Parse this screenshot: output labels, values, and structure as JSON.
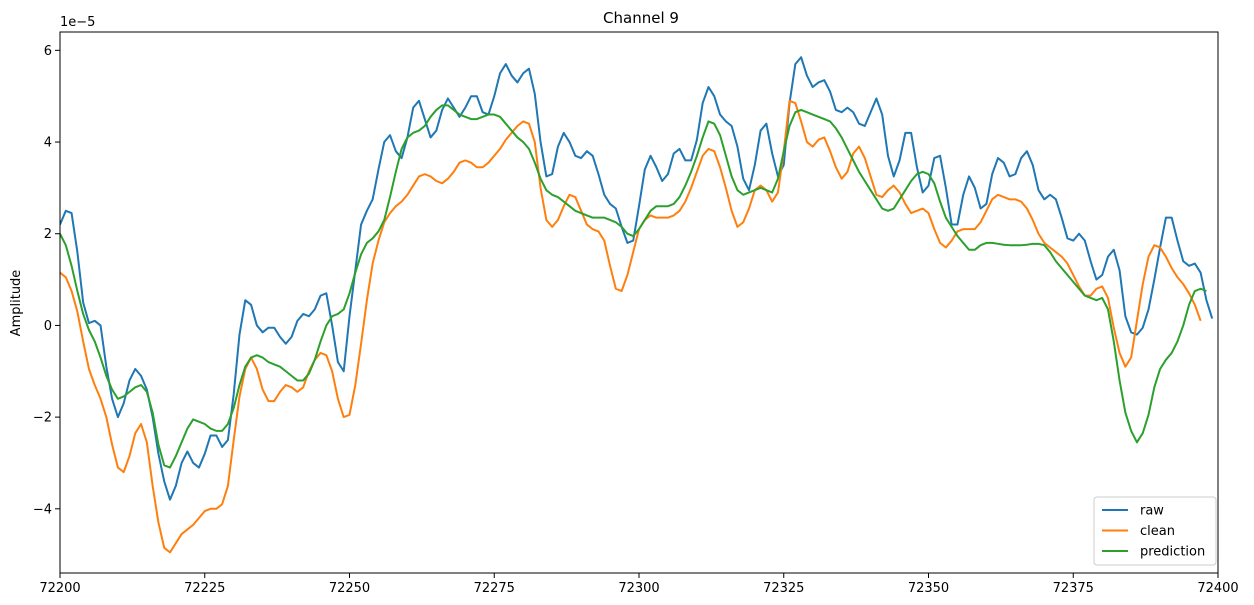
{
  "chart_data": {
    "type": "line",
    "title": "Channel 9",
    "xlabel": "",
    "ylabel": "Amplitude",
    "y_offset_text": "1e−5",
    "xlim": [
      72200,
      72400
    ],
    "ylim": [
      -5.4,
      6.4
    ],
    "x_ticks": [
      72200,
      72225,
      72250,
      72275,
      72300,
      72325,
      72350,
      72375,
      72400
    ],
    "y_ticks": [
      -4,
      -2,
      0,
      2,
      4,
      6
    ],
    "y_tick_labels": [
      "−4",
      "−2",
      "0",
      "2",
      "4",
      "6"
    ],
    "grid": false,
    "legend_position": "lower right",
    "x_start": 72200,
    "x_step": 1,
    "series": [
      {
        "name": "raw",
        "color": "#1f77b4",
        "values": [
          2.2,
          2.5,
          2.45,
          1.6,
          0.5,
          0.05,
          0.1,
          0.0,
          -0.9,
          -1.6,
          -2.0,
          -1.7,
          -1.2,
          -0.95,
          -1.1,
          -1.4,
          -2.0,
          -2.8,
          -3.4,
          -3.8,
          -3.5,
          -3.0,
          -2.75,
          -3.0,
          -3.1,
          -2.8,
          -2.4,
          -2.4,
          -2.65,
          -2.5,
          -1.5,
          -0.2,
          0.55,
          0.45,
          0.0,
          -0.15,
          -0.05,
          -0.05,
          -0.25,
          -0.4,
          -0.25,
          0.1,
          0.25,
          0.2,
          0.35,
          0.65,
          0.7,
          0.0,
          -0.8,
          -1.0,
          0.2,
          1.2,
          2.2,
          2.5,
          2.75,
          3.4,
          4.0,
          4.15,
          3.8,
          3.65,
          4.1,
          4.75,
          4.9,
          4.5,
          4.1,
          4.25,
          4.7,
          4.95,
          4.75,
          4.55,
          4.75,
          5.0,
          5.0,
          4.65,
          4.6,
          5.0,
          5.5,
          5.7,
          5.45,
          5.3,
          5.5,
          5.6,
          5.05,
          4.0,
          3.25,
          3.3,
          3.9,
          4.2,
          4.0,
          3.7,
          3.65,
          3.8,
          3.7,
          3.3,
          2.85,
          2.65,
          2.55,
          2.15,
          1.8,
          1.85,
          2.6,
          3.4,
          3.7,
          3.45,
          3.15,
          3.3,
          3.75,
          3.85,
          3.6,
          3.6,
          4.05,
          4.85,
          5.2,
          5.0,
          4.6,
          4.45,
          4.35,
          3.9,
          3.2,
          2.95,
          3.5,
          4.25,
          4.4,
          3.75,
          3.25,
          3.5,
          4.85,
          5.7,
          5.85,
          5.45,
          5.2,
          5.3,
          5.35,
          5.1,
          4.7,
          4.65,
          4.75,
          4.65,
          4.4,
          4.35,
          4.65,
          4.95,
          4.6,
          3.7,
          3.25,
          3.6,
          4.2,
          4.2,
          3.45,
          2.9,
          3.05,
          3.65,
          3.7,
          3.0,
          2.2,
          2.2,
          2.85,
          3.25,
          3.0,
          2.55,
          2.65,
          3.3,
          3.65,
          3.55,
          3.25,
          3.3,
          3.65,
          3.8,
          3.5,
          2.95,
          2.75,
          2.85,
          2.75,
          2.35,
          1.9,
          1.85,
          2.0,
          1.85,
          1.4,
          1.0,
          1.1,
          1.5,
          1.65,
          1.2,
          0.2,
          -0.15,
          -0.2,
          -0.05,
          0.35,
          1.0,
          1.7,
          2.35,
          2.35,
          1.85,
          1.4,
          1.3,
          1.35,
          1.15,
          0.55,
          0.15
        ]
      },
      {
        "name": "clean",
        "color": "#ff7f0e",
        "values": [
          1.15,
          1.05,
          0.75,
          0.3,
          -0.35,
          -0.95,
          -1.3,
          -1.6,
          -2.0,
          -2.6,
          -3.1,
          -3.2,
          -2.85,
          -2.35,
          -2.15,
          -2.55,
          -3.5,
          -4.3,
          -4.85,
          -4.95,
          -4.75,
          -4.55,
          -4.45,
          -4.35,
          -4.2,
          -4.05,
          -4.0,
          -4.0,
          -3.9,
          -3.5,
          -2.5,
          -1.55,
          -0.95,
          -0.7,
          -0.95,
          -1.4,
          -1.65,
          -1.65,
          -1.45,
          -1.3,
          -1.35,
          -1.45,
          -1.35,
          -1.0,
          -0.75,
          -0.6,
          -0.65,
          -1.0,
          -1.6,
          -2.0,
          -1.95,
          -1.3,
          -0.4,
          0.55,
          1.35,
          1.85,
          2.25,
          2.45,
          2.6,
          2.7,
          2.85,
          3.05,
          3.25,
          3.3,
          3.25,
          3.15,
          3.1,
          3.2,
          3.35,
          3.55,
          3.6,
          3.55,
          3.45,
          3.45,
          3.55,
          3.7,
          3.85,
          4.05,
          4.2,
          4.35,
          4.45,
          4.4,
          4.0,
          3.0,
          2.3,
          2.15,
          2.3,
          2.6,
          2.85,
          2.8,
          2.5,
          2.2,
          2.1,
          2.05,
          1.85,
          1.3,
          0.8,
          0.75,
          1.1,
          1.6,
          2.1,
          2.3,
          2.4,
          2.35,
          2.35,
          2.35,
          2.4,
          2.5,
          2.7,
          3.0,
          3.35,
          3.7,
          3.85,
          3.8,
          3.45,
          3.0,
          2.5,
          2.15,
          2.25,
          2.55,
          2.95,
          3.05,
          2.95,
          2.7,
          2.9,
          3.8,
          4.9,
          4.85,
          4.45,
          4.0,
          3.9,
          4.05,
          4.1,
          3.8,
          3.45,
          3.2,
          3.35,
          3.75,
          3.9,
          3.65,
          3.25,
          2.85,
          2.8,
          2.95,
          3.05,
          2.9,
          2.65,
          2.45,
          2.5,
          2.55,
          2.45,
          2.1,
          1.8,
          1.7,
          1.85,
          2.05,
          2.1,
          2.1,
          2.1,
          2.25,
          2.5,
          2.75,
          2.85,
          2.8,
          2.75,
          2.75,
          2.7,
          2.55,
          2.3,
          2.0,
          1.8,
          1.7,
          1.6,
          1.5,
          1.35,
          1.1,
          0.85,
          0.65,
          0.65,
          0.8,
          0.85,
          0.6,
          -0.05,
          -0.6,
          -0.9,
          -0.7,
          0.1,
          0.9,
          1.5,
          1.75,
          1.7,
          1.5,
          1.25,
          1.05,
          0.9,
          0.7,
          0.45,
          0.1
        ]
      },
      {
        "name": "prediction",
        "color": "#2ca02c",
        "values": [
          2.0,
          1.75,
          1.3,
          0.75,
          0.25,
          -0.1,
          -0.35,
          -0.7,
          -1.1,
          -1.4,
          -1.6,
          -1.55,
          -1.45,
          -1.35,
          -1.3,
          -1.45,
          -1.9,
          -2.6,
          -3.05,
          -3.1,
          -2.85,
          -2.55,
          -2.25,
          -2.05,
          -2.1,
          -2.15,
          -2.25,
          -2.3,
          -2.3,
          -2.15,
          -1.8,
          -1.3,
          -0.9,
          -0.7,
          -0.65,
          -0.7,
          -0.8,
          -0.85,
          -0.9,
          -1.0,
          -1.1,
          -1.2,
          -1.2,
          -1.05,
          -0.75,
          -0.35,
          0.0,
          0.2,
          0.25,
          0.35,
          0.7,
          1.15,
          1.55,
          1.8,
          1.9,
          2.05,
          2.3,
          2.8,
          3.35,
          3.85,
          4.1,
          4.2,
          4.25,
          4.35,
          4.55,
          4.7,
          4.8,
          4.8,
          4.7,
          4.6,
          4.55,
          4.5,
          4.5,
          4.55,
          4.6,
          4.6,
          4.55,
          4.4,
          4.25,
          4.1,
          4.0,
          3.85,
          3.55,
          3.2,
          2.95,
          2.85,
          2.8,
          2.7,
          2.6,
          2.5,
          2.45,
          2.4,
          2.35,
          2.35,
          2.35,
          2.3,
          2.25,
          2.15,
          2.0,
          1.95,
          2.1,
          2.3,
          2.5,
          2.6,
          2.6,
          2.6,
          2.65,
          2.8,
          3.05,
          3.35,
          3.7,
          4.1,
          4.45,
          4.4,
          4.15,
          3.7,
          3.25,
          2.95,
          2.85,
          2.9,
          2.95,
          3.0,
          2.95,
          2.9,
          3.2,
          3.8,
          4.35,
          4.65,
          4.7,
          4.65,
          4.6,
          4.55,
          4.5,
          4.45,
          4.3,
          4.1,
          3.85,
          3.6,
          3.35,
          3.15,
          2.95,
          2.75,
          2.55,
          2.5,
          2.55,
          2.75,
          2.95,
          3.15,
          3.3,
          3.35,
          3.3,
          3.1,
          2.7,
          2.35,
          2.15,
          1.95,
          1.8,
          1.65,
          1.65,
          1.75,
          1.8,
          1.8,
          1.78,
          1.76,
          1.75,
          1.75,
          1.75,
          1.76,
          1.78,
          1.78,
          1.75,
          1.6,
          1.4,
          1.25,
          1.1,
          0.95,
          0.8,
          0.65,
          0.6,
          0.55,
          0.6,
          0.35,
          -0.35,
          -1.2,
          -1.9,
          -2.3,
          -2.55,
          -2.35,
          -1.95,
          -1.35,
          -0.95,
          -0.75,
          -0.6,
          -0.35,
          0.0,
          0.45,
          0.75,
          0.8,
          0.75
        ]
      }
    ]
  }
}
